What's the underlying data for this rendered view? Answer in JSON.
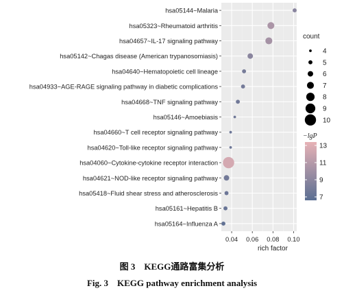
{
  "figure": {
    "caption_cn": "图 3　KEGG通路富集分析",
    "caption_en": "Fig. 3　KEGG pathway enrichment analysis"
  },
  "chart_data": {
    "type": "scatter",
    "xlabel": "rich factor",
    "ylabel": "",
    "xlim": [
      0.03,
      0.103
    ],
    "x_ticks": [
      "0.04",
      "0.06",
      "0.08",
      "0.10"
    ],
    "x_tick_values": [
      0.04,
      0.06,
      0.08,
      0.1
    ],
    "grid": true,
    "colors": {
      "panel_bg": "#ebebeb",
      "grid": "#ffffff",
      "low": "#5a6e92",
      "high": "#e7b2b6"
    },
    "categories": [
      "hsa05144~Malaria",
      "hsa05323~Rheumatoid arthritis",
      "hsa04657~IL-17 signaling pathway",
      "hsa05142~Chagas disease (American trypanosomiasis)",
      "hsa04640~Hematopoietic cell lineage",
      "hsa04933~AGE-RAGE signaling pathway in diabetic complications",
      "hsa04668~TNF signaling pathway",
      "hsa05146~Amoebiasis",
      "hsa04660~T cell receptor signaling pathway",
      "hsa04620~Toll-like receptor signaling pathway",
      "hsa04060~Cytokine-cytokine receptor interaction",
      "hsa04621~NOD-like receptor signaling pathway",
      "hsa05418~Fluid shear stress and atherosclerosis",
      "hsa05161~Hepatitis B",
      "hsa05164~Influenza A"
    ],
    "points": [
      {
        "x": 0.101,
        "count": 5,
        "lgP": 8.8
      },
      {
        "x": 0.078,
        "count": 7,
        "lgP": 10.5
      },
      {
        "x": 0.076,
        "count": 7,
        "lgP": 10.2
      },
      {
        "x": 0.058,
        "count": 6,
        "lgP": 8.9
      },
      {
        "x": 0.052,
        "count": 5,
        "lgP": 8.0
      },
      {
        "x": 0.051,
        "count": 5,
        "lgP": 7.9
      },
      {
        "x": 0.046,
        "count": 5,
        "lgP": 7.7
      },
      {
        "x": 0.043,
        "count": 4,
        "lgP": 7.6
      },
      {
        "x": 0.039,
        "count": 4,
        "lgP": 7.5
      },
      {
        "x": 0.039,
        "count": 4,
        "lgP": 7.5
      },
      {
        "x": 0.037,
        "count": 10,
        "lgP": 12.5
      },
      {
        "x": 0.035,
        "count": 6,
        "lgP": 7.8
      },
      {
        "x": 0.035,
        "count": 5,
        "lgP": 7.5
      },
      {
        "x": 0.034,
        "count": 5,
        "lgP": 7.3
      },
      {
        "x": 0.032,
        "count": 5,
        "lgP": 7.0
      }
    ],
    "legend_size": {
      "title": "count",
      "labels": [
        "4",
        "5",
        "6",
        "7",
        "8",
        "9",
        "10"
      ],
      "values": [
        4,
        5,
        6,
        7,
        8,
        9,
        10
      ]
    },
    "legend_color": {
      "title": "−lgP",
      "labels": [
        "13",
        "11",
        "9",
        "7"
      ],
      "values": [
        13,
        11,
        9,
        7
      ],
      "range": [
        6.6,
        13.4
      ]
    }
  }
}
